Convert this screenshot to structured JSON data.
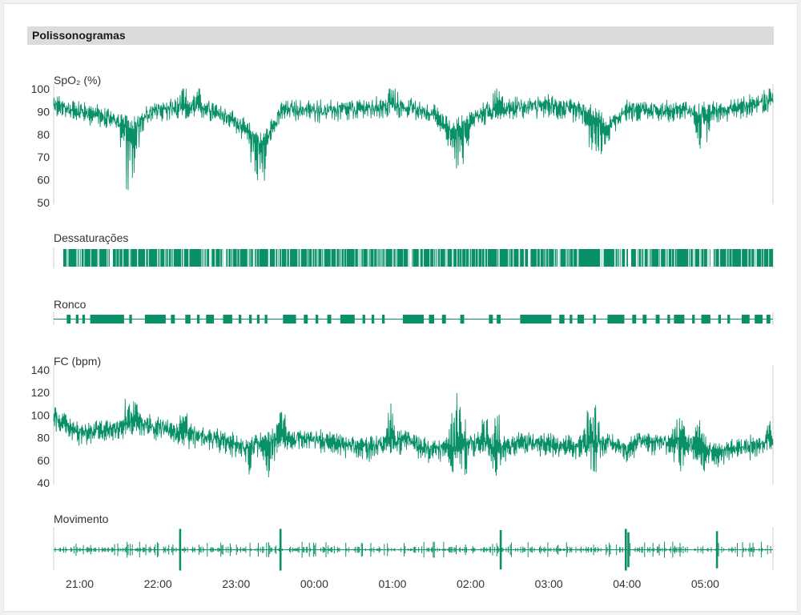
{
  "section": {
    "title": "Polissonogramas"
  },
  "colors": {
    "accent": "#0a9068",
    "axis": "#cccccc",
    "header_bg": "#dcdcdc"
  },
  "chart_data": [
    {
      "id": "spo2",
      "type": "line",
      "title": "SpO₂ (%)",
      "ylim": [
        50,
        100
      ],
      "yticks": [
        100,
        90,
        80,
        70,
        60,
        50
      ],
      "x_range": [
        "20:40",
        "05:52"
      ],
      "series": [
        {
          "values_note_free": true,
          "baseline": [
            [
              "20:40",
              93
            ],
            [
              "21:20",
              88
            ],
            [
              "21:40",
              84
            ],
            [
              "22:00",
              91
            ],
            [
              "22:40",
              92
            ],
            [
              "23:00",
              86
            ],
            [
              "23:20",
              76
            ],
            [
              "23:35",
              91
            ],
            [
              "00:30",
              91
            ],
            [
              "01:00",
              93
            ],
            [
              "01:30",
              90
            ],
            [
              "01:45",
              82
            ],
            [
              "02:05",
              89
            ],
            [
              "02:30",
              92
            ],
            [
              "03:00",
              93
            ],
            [
              "03:30",
              90
            ],
            [
              "03:45",
              83
            ],
            [
              "04:00",
              91
            ],
            [
              "04:40",
              91
            ],
            [
              "05:00",
              90
            ],
            [
              "05:52",
              95
            ]
          ],
          "minima": [
            [
              "21:37",
              57
            ],
            [
              "21:42",
              60
            ],
            [
              "23:15",
              61
            ],
            [
              "23:20",
              62
            ],
            [
              "01:48",
              66
            ],
            [
              "01:55",
              70
            ],
            [
              "03:33",
              71
            ],
            [
              "03:40",
              72
            ],
            [
              "04:58",
              75
            ]
          ],
          "maxima": [
            [
              "22:20",
              100
            ],
            [
              "22:30",
              99
            ],
            [
              "01:00",
              99
            ],
            [
              "02:20",
              100
            ],
            [
              "05:50",
              100
            ]
          ]
        }
      ]
    },
    {
      "id": "dessaturacoes",
      "type": "event-raster",
      "title": "Dessaturações",
      "gaps": [
        [
          "21:23",
          "21:25"
        ],
        [
          "22:50",
          "22:52"
        ],
        [
          "01:13",
          "01:15"
        ],
        [
          "02:44",
          "02:46"
        ],
        [
          "04:01",
          "04:03"
        ],
        [
          "05:04",
          "05:06"
        ]
      ]
    },
    {
      "id": "ronco",
      "type": "event-raster",
      "title": "Ronco",
      "blocks": [
        [
          "20:50",
          "20:53"
        ],
        [
          "20:57",
          "20:59"
        ],
        [
          "21:02",
          "21:04"
        ],
        [
          "21:08",
          "21:34"
        ],
        [
          "21:38",
          "21:40"
        ],
        [
          "21:50",
          "22:06"
        ],
        [
          "22:10",
          "22:13"
        ],
        [
          "22:21",
          "22:25"
        ],
        [
          "22:30",
          "22:32"
        ],
        [
          "22:37",
          "22:43"
        ],
        [
          "22:50",
          "22:57"
        ],
        [
          "23:02",
          "23:04"
        ],
        [
          "23:10",
          "23:12"
        ],
        [
          "23:16",
          "23:18"
        ],
        [
          "23:22",
          "23:24"
        ],
        [
          "23:36",
          "23:46"
        ],
        [
          "23:52",
          "23:55"
        ],
        [
          "00:01",
          "00:03"
        ],
        [
          "00:10",
          "00:13"
        ],
        [
          "00:20",
          "00:31"
        ],
        [
          "00:37",
          "00:39"
        ],
        [
          "00:44",
          "00:46"
        ],
        [
          "00:52",
          "00:54"
        ],
        [
          "01:08",
          "01:24"
        ],
        [
          "01:28",
          "01:32"
        ],
        [
          "01:38",
          "01:41"
        ],
        [
          "01:52",
          "01:55"
        ],
        [
          "02:14",
          "02:17"
        ],
        [
          "02:20",
          "02:23"
        ],
        [
          "02:38",
          "03:02"
        ],
        [
          "03:08",
          "03:12"
        ],
        [
          "03:16",
          "03:18"
        ],
        [
          "03:22",
          "03:27"
        ],
        [
          "03:34",
          "03:36"
        ],
        [
          "03:45",
          "03:58"
        ],
        [
          "04:04",
          "04:07"
        ],
        [
          "04:12",
          "04:15"
        ],
        [
          "04:22",
          "04:25"
        ],
        [
          "04:31",
          "04:33"
        ],
        [
          "04:36",
          "04:44"
        ],
        [
          "04:50",
          "04:52"
        ],
        [
          "04:57",
          "05:04"
        ],
        [
          "05:10",
          "05:12"
        ],
        [
          "05:17",
          "05:19"
        ],
        [
          "05:28",
          "05:34"
        ],
        [
          "05:38",
          "05:44"
        ],
        [
          "05:47",
          "05:50"
        ]
      ]
    },
    {
      "id": "fc",
      "type": "line",
      "title": "FC (bpm)",
      "ylim": [
        40,
        140
      ],
      "yticks": [
        140,
        120,
        100,
        80,
        60,
        40
      ],
      "x_range": [
        "20:40",
        "05:52"
      ],
      "series": [
        {
          "baseline": [
            [
              "20:40",
              100
            ],
            [
              "21:00",
              85
            ],
            [
              "21:30",
              90
            ],
            [
              "21:45",
              95
            ],
            [
              "22:15",
              85
            ],
            [
              "22:40",
              80
            ],
            [
              "23:10",
              72
            ],
            [
              "23:20",
              78
            ],
            [
              "23:40",
              80
            ],
            [
              "00:10",
              78
            ],
            [
              "00:40",
              72
            ],
            [
              "00:55",
              75
            ],
            [
              "01:10",
              80
            ],
            [
              "01:30",
              70
            ],
            [
              "02:00",
              75
            ],
            [
              "02:20",
              72
            ],
            [
              "02:40",
              77
            ],
            [
              "03:00",
              75
            ],
            [
              "03:20",
              72
            ],
            [
              "03:40",
              78
            ],
            [
              "04:00",
              70
            ],
            [
              "04:10",
              78
            ],
            [
              "04:40",
              76
            ],
            [
              "05:00",
              70
            ],
            [
              "05:30",
              72
            ],
            [
              "05:52",
              77
            ]
          ],
          "maxima": [
            [
              "21:37",
              113
            ],
            [
              "21:42",
              114
            ],
            [
              "22:20",
              105
            ],
            [
              "23:35",
              107
            ],
            [
              "00:59",
              108
            ],
            [
              "01:48",
              122
            ],
            [
              "01:53",
              112
            ],
            [
              "02:10",
              105
            ],
            [
              "02:20",
              106
            ],
            [
              "03:30",
              104
            ],
            [
              "03:35",
              106
            ],
            [
              "04:40",
              103
            ],
            [
              "04:56",
              105
            ],
            [
              "05:50",
              108
            ]
          ],
          "minima": [
            [
              "23:10",
              57
            ],
            [
              "23:25",
              56
            ],
            [
              "01:48",
              53
            ],
            [
              "01:55",
              55
            ],
            [
              "02:20",
              60
            ],
            [
              "03:35",
              55
            ],
            [
              "04:40",
              60
            ],
            [
              "05:00",
              54
            ],
            [
              "05:10",
              55
            ]
          ]
        }
      ]
    },
    {
      "id": "movimento",
      "type": "bar",
      "title": "Movimento",
      "large_bursts": [
        [
          "22:17",
          1.0
        ],
        [
          "23:34",
          1.0
        ],
        [
          "02:23",
          0.9
        ],
        [
          "03:59",
          1.0
        ],
        [
          "04:01",
          0.7
        ],
        [
          "05:09",
          0.8
        ]
      ]
    }
  ],
  "x_axis": {
    "ticks": [
      "21:00",
      "22:00",
      "23:00",
      "00:00",
      "01:00",
      "02:00",
      "03:00",
      "04:00",
      "05:00"
    ]
  }
}
